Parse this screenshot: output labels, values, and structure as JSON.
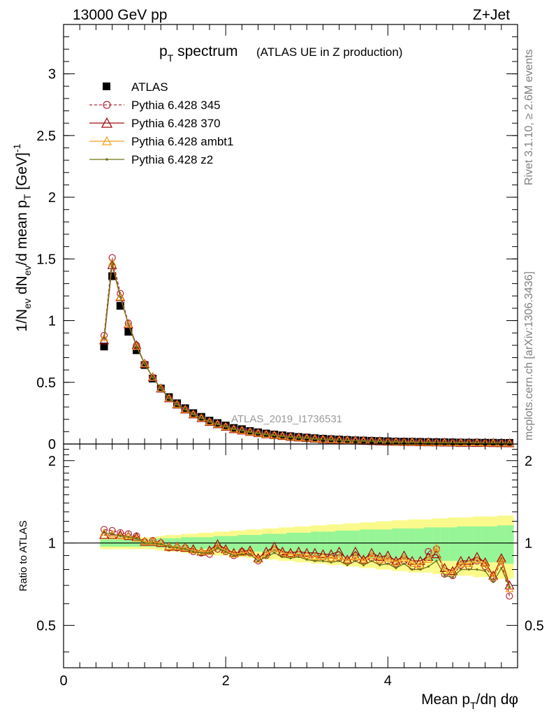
{
  "header": {
    "left": "13000 GeV pp",
    "right": "Z+Jet"
  },
  "side_labels": {
    "rivet": "Rivet 3.1.10, ≥ 2.6M events",
    "mcplots": "mcplots.cern.ch [arXiv:1306.3436]"
  },
  "colors": {
    "data": "#000000",
    "p345": "#b4283c",
    "p370": "#9b0f0f",
    "ambt1": "#f5a01e",
    "z2": "#6e7314",
    "band_inner": "#96f596",
    "band_outer": "#fafa8c"
  },
  "chart_data": [
    {
      "type": "line",
      "title": "p_T spectrum",
      "title_main": "p",
      "title_sub": "T",
      "title_rest": " spectrum",
      "title_note": "(ATLAS UE in Z production)",
      "watermark": "ATLAS_2019_I1736531",
      "ylabel": "1/N_ev dN_ev/d mean p_T [GeV]^-1",
      "xlim": [
        0,
        5.6
      ],
      "ylim": [
        0,
        3.4
      ],
      "yticks": [
        "0",
        "0.5",
        "1",
        "1.5",
        "2",
        "2.5",
        "3"
      ],
      "ytick_values": [
        0,
        0.5,
        1,
        1.5,
        2,
        2.5,
        3
      ],
      "x": [
        0.5,
        0.6,
        0.7,
        0.8,
        0.9,
        1.0,
        1.1,
        1.2,
        1.3,
        1.4,
        1.5,
        1.6,
        1.7,
        1.8,
        1.9,
        2.0,
        2.1,
        2.2,
        2.3,
        2.4,
        2.5,
        2.6,
        2.7,
        2.8,
        2.9,
        3.0,
        3.1,
        3.2,
        3.3,
        3.4,
        3.5,
        3.6,
        3.7,
        3.8,
        3.9,
        4.0,
        4.1,
        4.2,
        4.3,
        4.4,
        4.5,
        4.6,
        4.7,
        4.8,
        4.9,
        5.0,
        5.1,
        5.2,
        5.3,
        5.4,
        5.5
      ],
      "legend": {
        "position": "top-left",
        "entries": [
          "ATLAS",
          "Pythia 6.428 345",
          "Pythia 6.428 370",
          "Pythia 6.428 ambt1",
          "Pythia 6.428 z2"
        ]
      },
      "series": [
        {
          "name": "ATLAS",
          "values": [
            0.79,
            1.36,
            1.12,
            0.91,
            0.76,
            0.64,
            0.53,
            0.45,
            0.38,
            0.33,
            0.29,
            0.25,
            0.22,
            0.19,
            0.17,
            0.15,
            0.13,
            0.12,
            0.105,
            0.095,
            0.085,
            0.077,
            0.07,
            0.063,
            0.057,
            0.052,
            0.047,
            0.043,
            0.039,
            0.036,
            0.033,
            0.03,
            0.028,
            0.026,
            0.024,
            0.022,
            0.02,
            0.019,
            0.018,
            0.017,
            0.016,
            0.015,
            0.014,
            0.013,
            0.012,
            0.011,
            0.011,
            0.01,
            0.01,
            0.009,
            0.009
          ]
        },
        {
          "name": "Pythia 6.428 345",
          "values": [
            0.88,
            1.51,
            1.22,
            0.98,
            0.8,
            0.65,
            0.54,
            0.45,
            0.37,
            0.32,
            0.28,
            0.24,
            0.21,
            0.18,
            0.16,
            0.14,
            0.12,
            0.11,
            0.098,
            0.088,
            0.078,
            0.071,
            0.064,
            0.057,
            0.052,
            0.047,
            0.042,
            0.038,
            0.035,
            0.032,
            0.029,
            0.027,
            0.025,
            0.023,
            0.021,
            0.019,
            0.017,
            0.016,
            0.015,
            0.014,
            0.013,
            0.012,
            0.011,
            0.01,
            0.01,
            0.009,
            0.009,
            0.008,
            0.008,
            0.007,
            0.006
          ]
        },
        {
          "name": "Pythia 6.428 370",
          "values": [
            0.84,
            1.45,
            1.19,
            0.97,
            0.8,
            0.65,
            0.54,
            0.45,
            0.37,
            0.32,
            0.28,
            0.24,
            0.21,
            0.18,
            0.16,
            0.14,
            0.12,
            0.11,
            0.098,
            0.088,
            0.079,
            0.072,
            0.065,
            0.058,
            0.053,
            0.048,
            0.043,
            0.039,
            0.036,
            0.033,
            0.03,
            0.028,
            0.026,
            0.024,
            0.022,
            0.02,
            0.018,
            0.017,
            0.016,
            0.015,
            0.014,
            0.013,
            0.012,
            0.011,
            0.01,
            0.01,
            0.009,
            0.009,
            0.008,
            0.007,
            0.006
          ]
        },
        {
          "name": "Pythia 6.428 ambt1",
          "values": [
            0.86,
            1.47,
            1.19,
            0.97,
            0.79,
            0.65,
            0.54,
            0.45,
            0.37,
            0.32,
            0.28,
            0.24,
            0.21,
            0.18,
            0.16,
            0.14,
            0.12,
            0.11,
            0.097,
            0.087,
            0.078,
            0.071,
            0.064,
            0.057,
            0.052,
            0.047,
            0.042,
            0.038,
            0.035,
            0.032,
            0.029,
            0.027,
            0.025,
            0.023,
            0.021,
            0.019,
            0.017,
            0.016,
            0.015,
            0.014,
            0.013,
            0.012,
            0.011,
            0.01,
            0.01,
            0.009,
            0.009,
            0.008,
            0.008,
            0.007,
            0.006
          ]
        },
        {
          "name": "Pythia 6.428 z2",
          "values": [
            0.86,
            1.47,
            1.19,
            0.97,
            0.79,
            0.65,
            0.54,
            0.45,
            0.37,
            0.32,
            0.28,
            0.24,
            0.21,
            0.18,
            0.16,
            0.14,
            0.12,
            0.11,
            0.096,
            0.086,
            0.077,
            0.07,
            0.063,
            0.056,
            0.051,
            0.046,
            0.041,
            0.037,
            0.034,
            0.031,
            0.028,
            0.026,
            0.024,
            0.022,
            0.02,
            0.018,
            0.017,
            0.015,
            0.014,
            0.013,
            0.012,
            0.011,
            0.011,
            0.01,
            0.009,
            0.009,
            0.008,
            0.008,
            0.007,
            0.007,
            0.006
          ]
        }
      ]
    },
    {
      "type": "line",
      "xlabel": "Mean p_T/dη dφ",
      "xlabel_a": "Mean p",
      "xlabel_sub": "T",
      "xlabel_b": "/dη dφ",
      "ylabel": "Ratio to ATLAS",
      "xlim": [
        0,
        5.6
      ],
      "ylim": [
        0.35,
        2.3
      ],
      "xticks": [
        "0",
        "2",
        "4"
      ],
      "xtick_values": [
        0,
        2,
        4
      ],
      "yticks": [
        "0.5",
        "1",
        "2"
      ],
      "ytick_values": [
        0.5,
        1,
        2
      ],
      "reference_line": 1,
      "x": [
        0.5,
        0.6,
        0.7,
        0.8,
        0.9,
        1.0,
        1.1,
        1.2,
        1.3,
        1.4,
        1.5,
        1.6,
        1.7,
        1.8,
        1.9,
        2.0,
        2.1,
        2.2,
        2.3,
        2.4,
        2.5,
        2.6,
        2.7,
        2.8,
        2.9,
        3.0,
        3.1,
        3.2,
        3.3,
        3.4,
        3.5,
        3.6,
        3.7,
        3.8,
        3.9,
        4.0,
        4.1,
        4.2,
        4.3,
        4.4,
        4.5,
        4.6,
        4.7,
        4.8,
        4.9,
        5.0,
        5.1,
        5.2,
        5.3,
        5.4,
        5.5
      ],
      "band_outer": [
        0.05,
        0.05,
        0.05,
        0.05,
        0.05,
        0.05,
        0.05,
        0.06,
        0.07,
        0.07,
        0.08,
        0.08,
        0.09,
        0.09,
        0.1,
        0.1,
        0.11,
        0.11,
        0.12,
        0.12,
        0.13,
        0.13,
        0.14,
        0.14,
        0.15,
        0.15,
        0.16,
        0.16,
        0.17,
        0.17,
        0.18,
        0.18,
        0.19,
        0.19,
        0.2,
        0.2,
        0.21,
        0.21,
        0.22,
        0.22,
        0.22,
        0.23,
        0.23,
        0.24,
        0.24,
        0.24,
        0.25,
        0.25,
        0.25,
        0.26,
        0.26
      ],
      "band_inner": [
        0.03,
        0.03,
        0.03,
        0.03,
        0.03,
        0.03,
        0.03,
        0.04,
        0.04,
        0.04,
        0.05,
        0.05,
        0.05,
        0.05,
        0.06,
        0.06,
        0.06,
        0.07,
        0.07,
        0.07,
        0.08,
        0.08,
        0.08,
        0.09,
        0.09,
        0.09,
        0.1,
        0.1,
        0.1,
        0.11,
        0.11,
        0.11,
        0.12,
        0.12,
        0.12,
        0.12,
        0.13,
        0.13,
        0.13,
        0.13,
        0.14,
        0.14,
        0.14,
        0.14,
        0.15,
        0.15,
        0.15,
        0.15,
        0.15,
        0.16,
        0.16
      ],
      "series": [
        {
          "name": "Pythia 6.428 345",
          "values": [
            1.12,
            1.11,
            1.09,
            1.08,
            1.06,
            1.01,
            1.02,
            1.0,
            0.96,
            0.96,
            0.96,
            0.93,
            0.92,
            0.91,
            0.95,
            0.93,
            0.9,
            0.93,
            0.92,
            0.86,
            0.9,
            0.95,
            0.91,
            0.91,
            0.91,
            0.9,
            0.88,
            0.89,
            0.88,
            0.88,
            0.86,
            0.88,
            0.86,
            0.88,
            0.86,
            0.86,
            0.84,
            0.86,
            0.82,
            0.82,
            0.93,
            0.95,
            0.77,
            0.76,
            0.83,
            0.82,
            0.86,
            0.82,
            0.74,
            0.86,
            0.64
          ]
        },
        {
          "name": "Pythia 6.428 370",
          "values": [
            1.07,
            1.07,
            1.07,
            1.06,
            1.05,
            1.01,
            1.01,
            1.0,
            0.97,
            0.97,
            0.96,
            0.95,
            0.93,
            0.94,
            0.99,
            0.95,
            0.92,
            0.93,
            0.94,
            0.88,
            0.93,
            0.97,
            0.93,
            0.92,
            0.93,
            0.92,
            0.92,
            0.91,
            0.91,
            0.93,
            0.87,
            0.93,
            0.87,
            0.92,
            0.89,
            0.9,
            0.86,
            0.9,
            0.86,
            0.86,
            0.89,
            0.91,
            0.81,
            0.79,
            0.86,
            0.86,
            0.89,
            0.85,
            0.76,
            0.88,
            0.7
          ]
        },
        {
          "name": "Pythia 6.428 ambt1",
          "values": [
            1.09,
            1.08,
            1.06,
            1.06,
            1.04,
            1.01,
            1.01,
            1.0,
            0.97,
            0.97,
            0.96,
            0.94,
            0.93,
            0.93,
            0.97,
            0.94,
            0.91,
            0.92,
            0.93,
            0.87,
            0.91,
            0.95,
            0.92,
            0.91,
            0.91,
            0.9,
            0.89,
            0.89,
            0.88,
            0.89,
            0.86,
            0.89,
            0.86,
            0.9,
            0.87,
            0.88,
            0.85,
            0.88,
            0.84,
            0.83,
            0.87,
            0.96,
            0.79,
            0.78,
            0.84,
            0.84,
            0.87,
            0.84,
            0.75,
            0.87,
            0.68
          ]
        },
        {
          "name": "Pythia 6.428 z2",
          "values": [
            1.09,
            1.08,
            1.06,
            1.05,
            1.04,
            1.0,
            1.0,
            0.99,
            0.97,
            0.96,
            0.95,
            0.93,
            0.92,
            0.92,
            0.96,
            0.93,
            0.9,
            0.91,
            0.91,
            0.86,
            0.89,
            0.92,
            0.89,
            0.88,
            0.89,
            0.87,
            0.86,
            0.86,
            0.85,
            0.86,
            0.83,
            0.86,
            0.83,
            0.86,
            0.83,
            0.84,
            0.81,
            0.84,
            0.8,
            0.8,
            0.82,
            0.86,
            0.76,
            0.75,
            0.8,
            0.8,
            0.8,
            0.79,
            0.72,
            0.81,
            0.69
          ]
        }
      ]
    }
  ]
}
